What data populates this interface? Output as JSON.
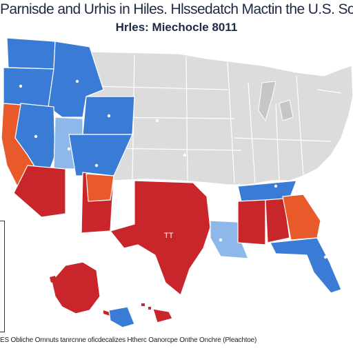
{
  "title": "Parnisde and Urhis in Hiles. Hlssedatch Mactin the U.S. So",
  "subtitle": "Hrles: Miechocle 8011",
  "state_label_texas": "TT",
  "footer_text": "ES Obliche Ornnuts tanrcnne oficdecalizes Htherc Oanorcpe Onthe Onchre (Pleachtoe)",
  "colors": {
    "blue": "#3a7bd5",
    "red": "#c8262a",
    "orange": "#e85a2a",
    "light_blue": "#8fb8ea",
    "gray": "#dcdcdc"
  }
}
